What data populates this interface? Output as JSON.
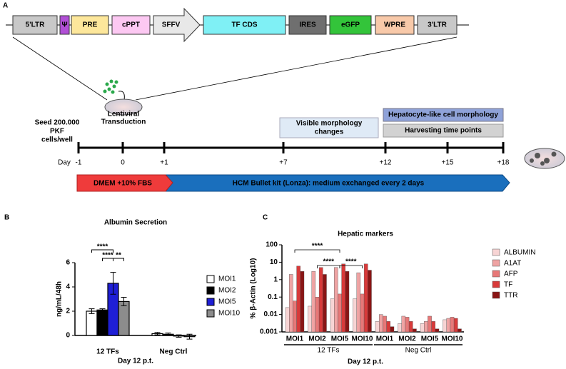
{
  "diagram": {
    "panel_labels": [
      "A",
      "B",
      "C"
    ],
    "construct": [
      "5'LTR",
      "Ψ",
      "PRE",
      "cPPT",
      "SFFV",
      "TF CDS",
      "IRES",
      "eGFP",
      "WPRE",
      "3'LTR"
    ],
    "seed": [
      "Seed 200.000",
      "PKF",
      "cells/well"
    ],
    "transduction": [
      "Lentiviral",
      "Transduction"
    ],
    "morphology": [
      "Visible morphology",
      "changes"
    ],
    "hepatocyte": "Hepatocyte-like cell morphology",
    "harvest": "Harvesting time points",
    "day_label": "Day",
    "days": [
      "-1",
      "0",
      "+1",
      "+7",
      "+12",
      "+15",
      "+18"
    ],
    "media": [
      "DMEM +10% FBS",
      "HCM Bullet kit (Lonza): medium exchanged every 2 days"
    ]
  },
  "chart_data": [
    {
      "type": "bar",
      "title": "Albumin Secretion",
      "y_label": "ng/mL/48h",
      "x_label": "Day 12 p.t.",
      "categories": [
        "12 TFs",
        "Neg Ctrl"
      ],
      "series": [
        {
          "name": "MOI1",
          "color": "#ffffff",
          "values": [
            2.0,
            0.15
          ],
          "errors": [
            0.2,
            0.1
          ]
        },
        {
          "name": "MOI2",
          "color": "#000000",
          "values": [
            2.1,
            0.1
          ],
          "errors": [
            0.1,
            0.1
          ]
        },
        {
          "name": "MOI5",
          "color": "#1f1fd6",
          "values": [
            4.3,
            -0.05
          ],
          "errors": [
            0.9,
            0.1
          ]
        },
        {
          "name": "MOI10",
          "color": "#8c8c8c",
          "values": [
            2.8,
            -0.1
          ],
          "errors": [
            0.35,
            0.2
          ]
        }
      ],
      "ylim": [
        0,
        6
      ],
      "yticks": [
        0,
        2,
        4,
        6
      ],
      "annotations": [
        "****",
        "****",
        "**"
      ]
    },
    {
      "type": "bar",
      "title": "Hepatic markers",
      "y_label": "% β-Actin (Log10)",
      "x_label": "Day 12 p.t.",
      "log_scale": true,
      "categories": [
        "MOI1",
        "MOI2",
        "MOI5",
        "MOI10",
        "MOI1",
        "MOI2",
        "MOI5",
        "MOI10"
      ],
      "groups": [
        "12 TFs",
        "Neg Ctrl"
      ],
      "series": [
        {
          "name": "ALBUMIN",
          "color": "#f7d4d4",
          "values": [
            0.025,
            0.03,
            0.08,
            0.08,
            0.004,
            0.003,
            0.003,
            0.005
          ]
        },
        {
          "name": "A1AT",
          "color": "#efa3a3",
          "values": [
            2,
            3,
            5,
            2.5,
            0.01,
            0.008,
            0.004,
            0.006
          ]
        },
        {
          "name": "AFP",
          "color": "#e77878",
          "values": [
            0.06,
            0.1,
            0.15,
            0.15,
            0.008,
            0.007,
            0.008,
            0.007
          ]
        },
        {
          "name": "TF",
          "color": "#d83a3a",
          "values": [
            6,
            5,
            8,
            8,
            0.004,
            0.004,
            0.004,
            0.006
          ]
        },
        {
          "name": "TTR",
          "color": "#8a1515",
          "values": [
            3,
            2,
            3,
            3.5,
            0.002,
            0.0015,
            0.0015,
            0.0015
          ]
        }
      ],
      "ylim": [
        0.001,
        100
      ],
      "yticks": [
        0.001,
        0.01,
        0.1,
        1,
        10,
        100
      ],
      "annotations": [
        "****",
        "****",
        "****"
      ]
    }
  ]
}
